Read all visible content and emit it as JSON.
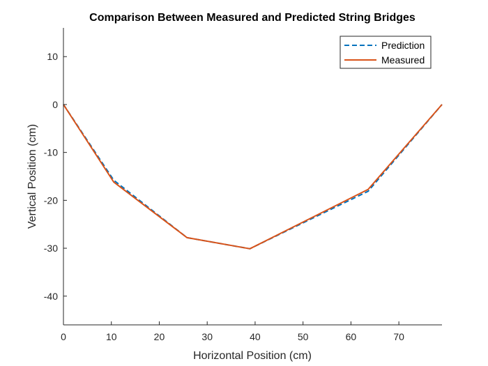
{
  "chart_data": {
    "type": "line",
    "title": "Comparison Between Measured and Predicted String Bridges",
    "xlabel": "Horizontal Position (cm)",
    "ylabel": "Vertical Position (cm)",
    "xlim": [
      0,
      79
    ],
    "ylim": [
      -46,
      16
    ],
    "xticks": [
      0,
      10,
      20,
      30,
      40,
      50,
      60,
      70
    ],
    "yticks": [
      10,
      0,
      -10,
      -20,
      -30,
      -40
    ],
    "grid": false,
    "legend_position": "top-right",
    "series": [
      {
        "name": "Prediction",
        "style": "dashed",
        "color": "#0072BD",
        "x": [
          0,
          10.5,
          25.8,
          38.9,
          63.6,
          79
        ],
        "y": [
          0,
          -15.8,
          -27.8,
          -30.1,
          -18.1,
          0
        ]
      },
      {
        "name": "Measured",
        "style": "solid",
        "color": "#D95319",
        "x": [
          0,
          10.5,
          25.8,
          38.9,
          63.6,
          79
        ],
        "y": [
          0,
          -16.2,
          -27.8,
          -30.1,
          -17.7,
          0
        ]
      }
    ]
  }
}
